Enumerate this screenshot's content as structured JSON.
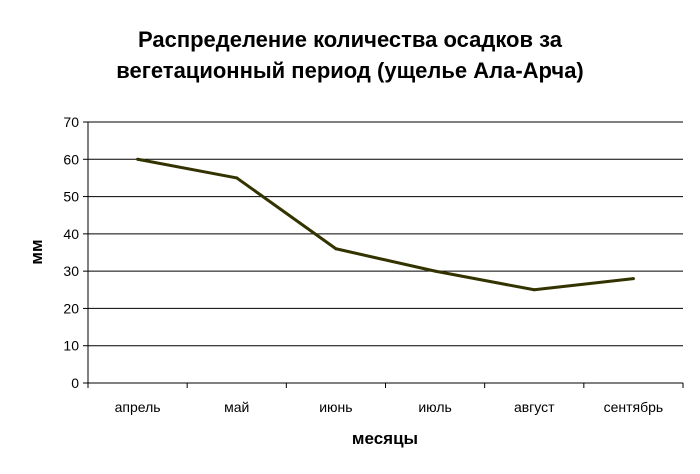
{
  "chart_data": {
    "type": "line",
    "title_lines": [
      "Распределение количества осадков за",
      "вегетационный период (ущелье Ала-Арча)"
    ],
    "xlabel": "месяцы",
    "ylabel": "мм",
    "categories": [
      "апрель",
      "май",
      "июнь",
      "июль",
      "август",
      "сентябрь"
    ],
    "series": [
      {
        "values": [
          60,
          55,
          36,
          30,
          25,
          28
        ]
      }
    ],
    "ylim": [
      0,
      70
    ],
    "yticks": [
      0,
      10,
      20,
      30,
      40,
      50,
      60,
      70
    ],
    "grid": true,
    "legend": "none",
    "line_color": "#333300",
    "grid_color": "#000000"
  }
}
